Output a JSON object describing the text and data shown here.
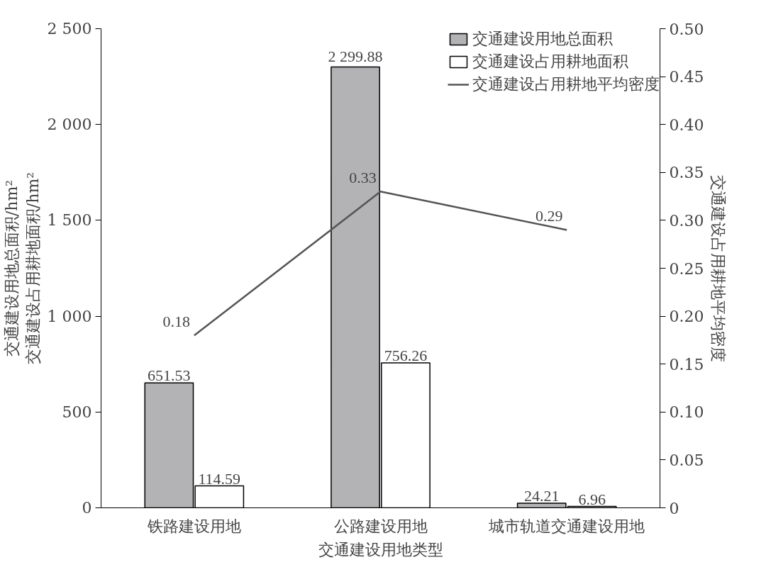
{
  "chart_data": {
    "type": "bar",
    "categories": [
      "铁路建设用地",
      "公路建设用地",
      "城市轨道交通建设用地"
    ],
    "xlabel": "交通建设用地类型",
    "ylabel": "交通建设用地总面积/hm²\n交通建设占用耕地面积/hm²",
    "y2label": "交通建设占用耕地平均密度",
    "series": [
      {
        "name": "交通建设用地总面积",
        "color": "#b3b3b5",
        "values": [
          651.53,
          2299.88,
          24.21
        ],
        "value_labels": [
          "651.53",
          "2 299.88",
          "24.21"
        ]
      },
      {
        "name": "交通建设占用耕地面积",
        "color": "#ffffff",
        "values": [
          114.59,
          756.26,
          6.96
        ],
        "value_labels": [
          "114.59",
          "756.26",
          "6.96"
        ]
      },
      {
        "name": "交通建设占用耕地平均密度",
        "type": "line",
        "axis": "y2",
        "color": "#555555",
        "values": [
          0.18,
          0.33,
          0.29
        ],
        "value_labels": [
          "0.18",
          "0.33",
          "0.29"
        ]
      }
    ],
    "ylim": [
      0,
      2500
    ],
    "yticks": [
      0,
      500,
      {
        "value": 1000,
        "label": "1 000"
      },
      {
        "value": 1500,
        "label": "1 500"
      },
      {
        "value": 2000,
        "label": "2 000"
      },
      {
        "value": 2500,
        "label": "2 500"
      }
    ],
    "y2lim": [
      0,
      0.5
    ],
    "y2ticks": [
      0,
      0.05,
      {
        "value": 0.1,
        "label": "0.10"
      },
      0.15,
      {
        "value": 0.2,
        "label": "0.20"
      },
      0.25,
      {
        "value": 0.3,
        "label": "0.30"
      },
      0.35,
      {
        "value": 0.4,
        "label": "0.40"
      },
      0.45,
      {
        "value": 0.5,
        "label": "0.50"
      }
    ],
    "grid": false,
    "legend": "top right",
    "marker": "none",
    "line_style": "solid"
  }
}
